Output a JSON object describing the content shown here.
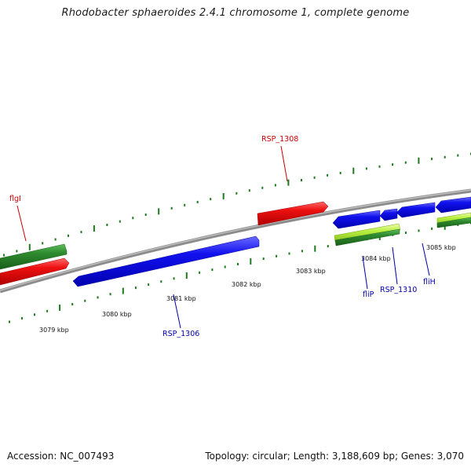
{
  "title": "Rhodobacter sphaeroides 2.4.1 chromosome 1, complete genome",
  "footer": {
    "accession": "Accession: NC_007493",
    "summary": "Topology: circular; Length: 3,188,609 bp; Genes: 3,070"
  },
  "colors": {
    "backbone": "#8c8c8c",
    "ticks": "#1e7a1e",
    "label_red": "#cc0000",
    "label_blue": "#0000aa"
  },
  "kbp_ticks": [
    "3079 kbp",
    "3080 kbp",
    "3081 kbp",
    "3082 kbp",
    "3083 kbp",
    "3084 kbp",
    "3085 kbp"
  ],
  "gene_labels": [
    {
      "text": "flgI",
      "color": "red"
    },
    {
      "text": "RSP_1308",
      "color": "red"
    },
    {
      "text": "RSP_1306",
      "color": "blue"
    },
    {
      "text": "fliP",
      "color": "blue"
    },
    {
      "text": "RSP_1310",
      "color": "blue"
    },
    {
      "text": "fliH",
      "color": "blue"
    }
  ],
  "feature_colors": [
    "green",
    "red",
    "blue",
    "red",
    "blue",
    "blue",
    "blue",
    "blue",
    "light-green",
    "green"
  ]
}
